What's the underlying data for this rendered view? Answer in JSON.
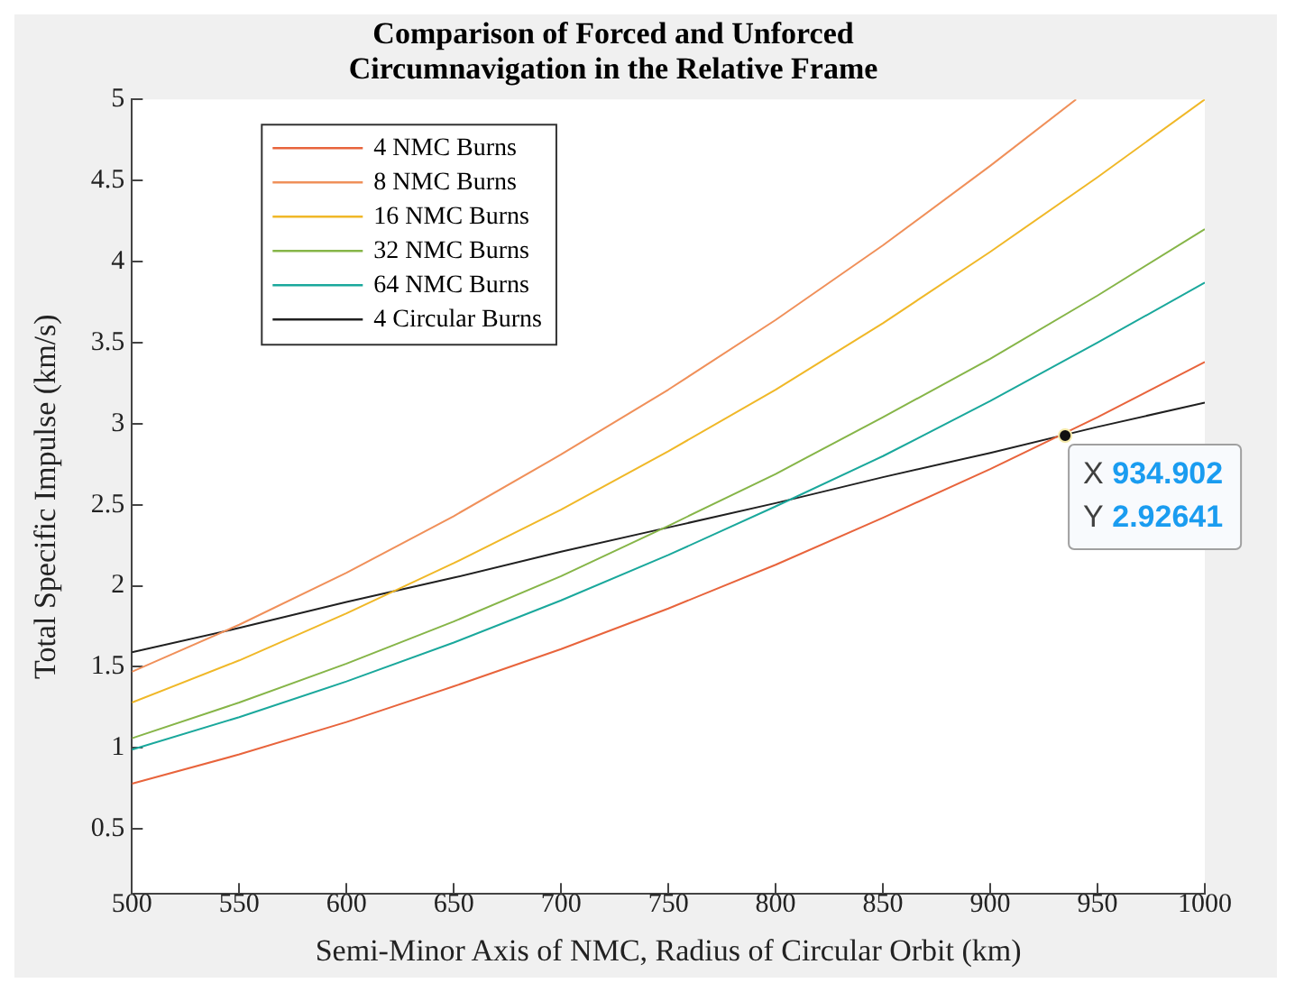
{
  "chart_data": {
    "type": "line",
    "title": "Comparison of Forced and Unforced\nCircumnavigation in the Relative Frame",
    "xlabel": "Semi-Minor Axis of NMC, Radius of Circular Orbit (km)",
    "ylabel": "Total Specific Impulse (km/s)",
    "x": [
      500,
      550,
      600,
      650,
      700,
      750,
      800,
      850,
      900,
      950,
      1000
    ],
    "series": [
      {
        "name": "4 NMC Burns",
        "color": "#e8643c",
        "values": [
          0.78,
          0.96,
          1.16,
          1.38,
          1.61,
          1.86,
          2.13,
          2.42,
          2.72,
          3.04,
          3.38
        ]
      },
      {
        "name": "8 NMC Burns",
        "color": "#f0905a",
        "x": [
          500,
          550,
          600,
          650,
          700,
          750,
          800,
          850,
          900,
          940
        ],
        "values": [
          1.47,
          1.76,
          2.08,
          2.43,
          2.81,
          3.21,
          3.64,
          4.1,
          4.59,
          5.0
        ]
      },
      {
        "name": "16 NMC Burns",
        "color": "#f0b828",
        "values": [
          1.28,
          1.54,
          1.83,
          2.14,
          2.47,
          2.83,
          3.21,
          3.62,
          4.06,
          4.52,
          5.0
        ]
      },
      {
        "name": "32 NMC Burns",
        "color": "#86b548",
        "values": [
          1.06,
          1.28,
          1.52,
          1.78,
          2.06,
          2.37,
          2.69,
          3.04,
          3.4,
          3.79,
          4.2
        ]
      },
      {
        "name": "64 NMC Burns",
        "color": "#1aa89c",
        "values": [
          0.99,
          1.19,
          1.41,
          1.65,
          1.91,
          2.19,
          2.49,
          2.8,
          3.14,
          3.5,
          3.87
        ]
      },
      {
        "name": "4 Circular Burns",
        "color": "#202020",
        "values": [
          1.59,
          1.74,
          1.9,
          2.05,
          2.21,
          2.36,
          2.51,
          2.67,
          2.82,
          2.98,
          3.13
        ]
      }
    ],
    "xlim": [
      500,
      1000
    ],
    "xticks": [
      500,
      550,
      600,
      650,
      700,
      750,
      800,
      850,
      900,
      950,
      1000
    ],
    "ylim": [
      0.1,
      5
    ],
    "yticks": [
      0.5,
      1,
      1.5,
      2,
      2.5,
      3,
      3.5,
      4,
      4.5,
      5
    ],
    "annotations": [
      {
        "text": "X 934.902\nY 2.92641",
        "x": 934.902,
        "y": 2.92641
      }
    ],
    "legend": "top left",
    "grid": false,
    "marker": "none",
    "line_style": "solid"
  }
}
